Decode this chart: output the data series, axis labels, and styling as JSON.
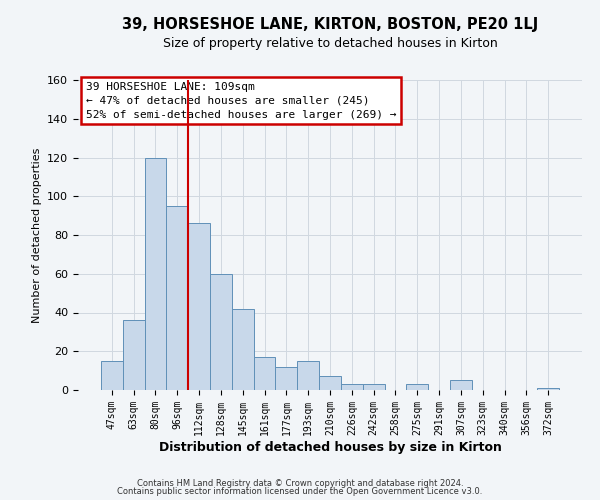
{
  "title": "39, HORSESHOE LANE, KIRTON, BOSTON, PE20 1LJ",
  "subtitle": "Size of property relative to detached houses in Kirton",
  "xlabel": "Distribution of detached houses by size in Kirton",
  "ylabel": "Number of detached properties",
  "bar_labels": [
    "47sqm",
    "63sqm",
    "80sqm",
    "96sqm",
    "112sqm",
    "128sqm",
    "145sqm",
    "161sqm",
    "177sqm",
    "193sqm",
    "210sqm",
    "226sqm",
    "242sqm",
    "258sqm",
    "275sqm",
    "291sqm",
    "307sqm",
    "323sqm",
    "340sqm",
    "356sqm",
    "372sqm"
  ],
  "bar_values": [
    15,
    36,
    120,
    95,
    86,
    60,
    42,
    17,
    12,
    15,
    7,
    3,
    3,
    0,
    3,
    0,
    5,
    0,
    0,
    0,
    1
  ],
  "bar_color": "#c8d8ea",
  "bar_edge_color": "#6090b8",
  "ylim": [
    0,
    160
  ],
  "yticks": [
    0,
    20,
    40,
    60,
    80,
    100,
    120,
    140,
    160
  ],
  "vline_color": "#cc0000",
  "annotation_title": "39 HORSESHOE LANE: 109sqm",
  "annotation_line1": "← 47% of detached houses are smaller (245)",
  "annotation_line2": "52% of semi-detached houses are larger (269) →",
  "annotation_box_color": "#cc0000",
  "footer1": "Contains HM Land Registry data © Crown copyright and database right 2024.",
  "footer2": "Contains public sector information licensed under the Open Government Licence v3.0.",
  "background_color": "#f2f5f8",
  "plot_background_color": "#f2f5f8"
}
